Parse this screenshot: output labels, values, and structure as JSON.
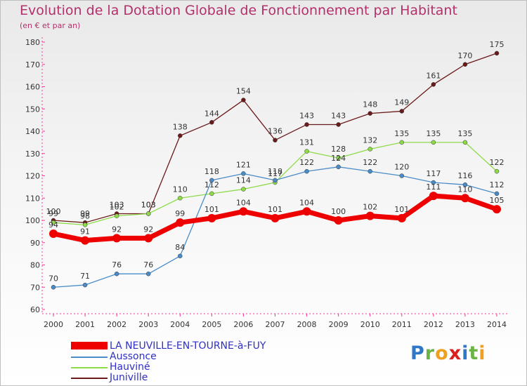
{
  "title": "Evolution de la Dotation Globale de Fonctionnement par Habitant",
  "subtitle": "(en € et par an)",
  "brand": {
    "letters": [
      {
        "ch": "P",
        "color": "#2f78c8"
      },
      {
        "ch": "r",
        "color": "#6ab445"
      },
      {
        "ch": "o",
        "color": "#f0a020"
      },
      {
        "ch": "x",
        "color": "#d82020"
      },
      {
        "ch": "i",
        "color": "#2f78c8"
      },
      {
        "ch": "t",
        "color": "#6ab445"
      },
      {
        "ch": "i",
        "color": "#f0a020"
      }
    ]
  },
  "chart_data": {
    "type": "line",
    "x": [
      "2000",
      "2001",
      "2002",
      "2003",
      "2004",
      "2005",
      "2006",
      "2007",
      "2008",
      "2009",
      "2010",
      "2011",
      "2012",
      "2013",
      "2014"
    ],
    "ylim": [
      60,
      180
    ],
    "yticks": [
      60,
      70,
      80,
      90,
      100,
      110,
      120,
      130,
      140,
      150,
      160,
      170,
      180
    ],
    "grid": false,
    "legend_position": "bottom-left",
    "series": [
      {
        "name": "Juniville",
        "color": "#6b1a1a",
        "values": [
          100,
          99,
          103,
          103,
          138,
          144,
          154,
          136,
          143,
          143,
          148,
          149,
          161,
          170,
          175
        ],
        "labels": [
          "100",
          "99",
          "103",
          "103",
          "138",
          "144",
          "154",
          "136",
          "143",
          "143",
          "148",
          "149",
          "161",
          "170",
          "175"
        ]
      },
      {
        "name": "Hauviné",
        "color": "#8edb4a",
        "values": [
          99,
          98,
          102,
          103,
          110,
          112,
          114,
          117,
          131,
          128,
          132,
          135,
          135,
          135,
          122
        ],
        "labels": [
          "99",
          "98",
          "102",
          "103",
          "110",
          "112",
          "114",
          "117",
          "131",
          "128",
          "132",
          "135",
          "135",
          "135",
          "122"
        ]
      },
      {
        "name": "Aussonce",
        "color": "#4a8cc8",
        "values": [
          70,
          71,
          76,
          76,
          84,
          118,
          121,
          118,
          122,
          124,
          122,
          120,
          117,
          116,
          112
        ],
        "labels": [
          "70",
          "71",
          "76",
          "76",
          "84",
          "118",
          "121",
          "118",
          "122",
          "124",
          "122",
          "120",
          "117",
          "116",
          "112"
        ]
      },
      {
        "name": "LA NEUVILLE-EN-TOURNE-à-FUY",
        "color": "#ee0000",
        "values": [
          94,
          91,
          92,
          92,
          99,
          101,
          104,
          101,
          104,
          100,
          102,
          101,
          111,
          110,
          105
        ],
        "labels": [
          "94",
          "91",
          "92",
          "92",
          "99",
          "101",
          "104",
          "101",
          "104",
          "100",
          "102",
          "101",
          "111",
          "110",
          "105"
        ]
      }
    ],
    "legend": [
      "LA NEUVILLE-EN-TOURNE-à-FUY",
      "Aussonce",
      "Hauviné",
      "Juniville"
    ]
  }
}
